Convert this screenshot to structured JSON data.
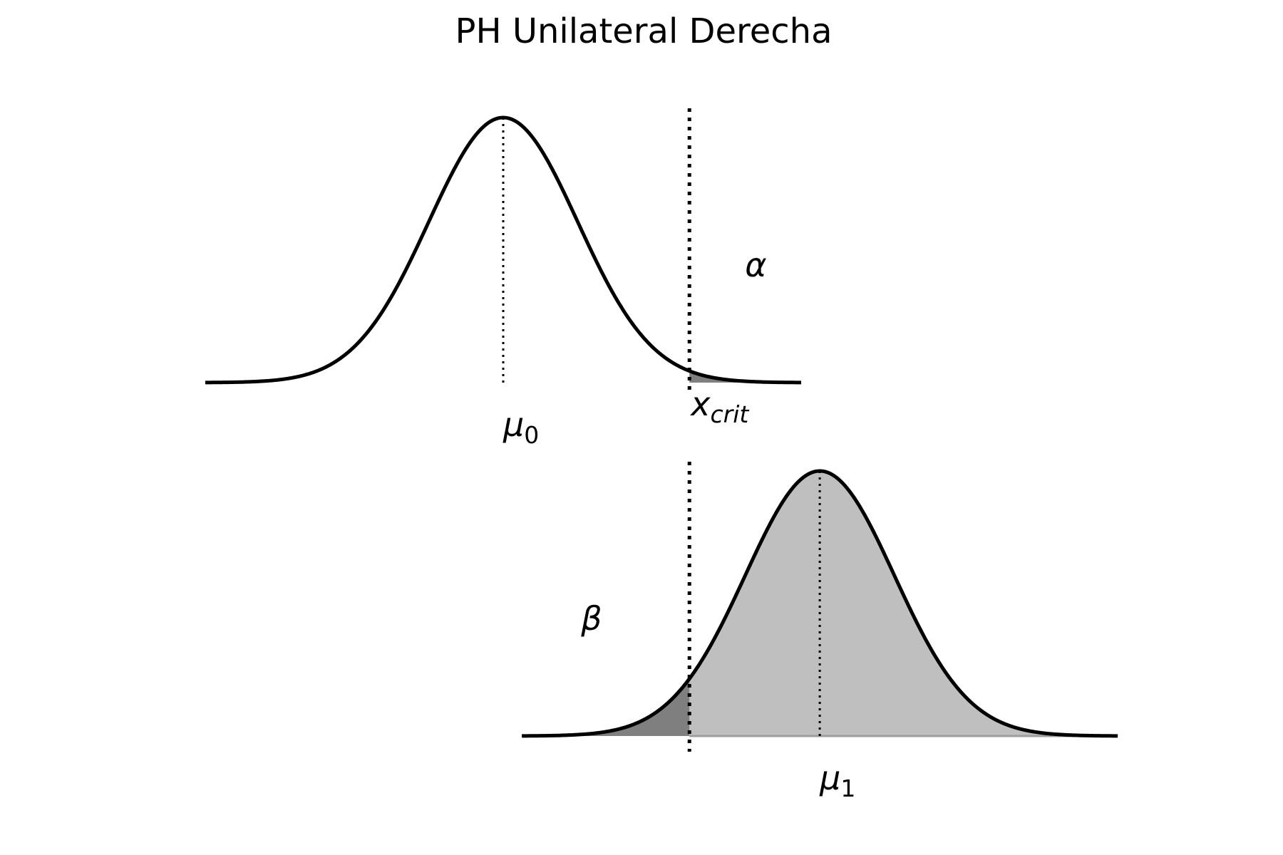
{
  "title": "PH Unilateral Derecha",
  "colors": {
    "curve": "#000000",
    "alpha_region": "#7f7f7f",
    "beta_region": "#7f7f7f",
    "power_region": "#bfbfbf",
    "baseline_lower": "#9e9e9e"
  },
  "labels": {
    "mu0_base": "μ",
    "mu0_sub": "0",
    "mu1_base": "μ",
    "mu1_sub": "1",
    "xcrit_base": "x",
    "xcrit_sub": "crit",
    "alpha": "α",
    "beta": "β"
  },
  "distributions": {
    "null": {
      "mean": 0,
      "sd": 1,
      "x_range": [
        -4,
        4
      ]
    },
    "alternative": {
      "mean": 4.25,
      "sd": 1,
      "x_range": [
        0.25,
        8.25
      ]
    },
    "x_crit": 2.5,
    "shaded": {
      "null": "right tail beyond x_crit",
      "alternative_left": "left of x_crit",
      "alternative_right": "right of x_crit"
    }
  }
}
